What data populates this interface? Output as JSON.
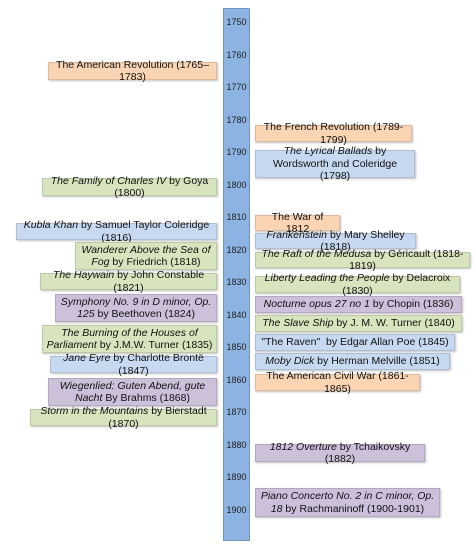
{
  "years": [
    "1750",
    "1760",
    "1770",
    "1780",
    "1790",
    "1800",
    "1810",
    "1820",
    "1830",
    "1840",
    "1850",
    "1860",
    "1870",
    "1880",
    "1890",
    "1900"
  ],
  "events": [
    {
      "color": "#fbd4b4",
      "parts": [
        {
          "text": "The American Revolution (1765–1783)",
          "italic": false
        }
      ]
    },
    {
      "color": "#d7e4bd",
      "parts": [
        {
          "text": "The Family of Charles IV",
          "italic": true
        },
        {
          "text": " by Goya (1800)",
          "italic": false
        }
      ]
    },
    {
      "color": "#c6d9f1",
      "parts": [
        {
          "text": "Kubla Khan",
          "italic": true
        },
        {
          "text": " by Samuel Taylor Coleridge (1816)",
          "italic": false
        }
      ]
    },
    {
      "color": "#d7e4bd",
      "parts": [
        {
          "text": "Wanderer Above the Sea of Fog",
          "italic": true
        },
        {
          "text": " by Friedrich (1818)",
          "italic": false
        }
      ]
    },
    {
      "color": "#d7e4bd",
      "parts": [
        {
          "text": "The Haywain",
          "italic": true
        },
        {
          "text": " by John Constable (1821)",
          "italic": false
        }
      ]
    },
    {
      "color": "#ccc0da",
      "parts": [
        {
          "text": "Symphony No. 9 in D minor, Op. 125",
          "italic": true
        },
        {
          "text": " by Beethoven (1824)",
          "italic": false
        }
      ]
    },
    {
      "color": "#d7e4bd",
      "parts": [
        {
          "text": "The Burning of the Houses of Parliament",
          "italic": true
        },
        {
          "text": " by J.M.W. Turner (1835)",
          "italic": false
        }
      ]
    },
    {
      "color": "#c6d9f1",
      "parts": [
        {
          "text": "Jane Eyre",
          "italic": true
        },
        {
          "text": " by Charlotte Brontë (1847)",
          "italic": false
        }
      ]
    },
    {
      "color": "#ccc0da",
      "parts": [
        {
          "text": "Wiegenlied: Guten Abend, gute Nacht",
          "italic": true
        },
        {
          "text": " By Brahms (1868)",
          "italic": false
        }
      ]
    },
    {
      "color": "#d7e4bd",
      "parts": [
        {
          "text": "Storm in the Mountains",
          "italic": true
        },
        {
          "text": " by Bierstadt (1870)",
          "italic": false
        }
      ]
    },
    {
      "color": "#fbd4b4",
      "parts": [
        {
          "text": "The French Revolution (1789-1799)",
          "italic": false
        }
      ]
    },
    {
      "color": "#c6d9f1",
      "parts": [
        {
          "text": "The Lyrical Ballads",
          "italic": true
        },
        {
          "text": " by Wordsworth and Coleridge (1798)",
          "italic": false
        }
      ]
    },
    {
      "color": "#fbd4b4",
      "parts": [
        {
          "text": "The War of 1812",
          "italic": false
        }
      ]
    },
    {
      "color": "#c6d9f1",
      "parts": [
        {
          "text": "Frankenstein",
          "italic": true
        },
        {
          "text": " by Mary Shelley (1818)",
          "italic": false
        }
      ]
    },
    {
      "color": "#d7e4bd",
      "parts": [
        {
          "text": "The Raft of the Medusa",
          "italic": true
        },
        {
          "text": " by Géricault (1818-1819)",
          "italic": false
        }
      ]
    },
    {
      "color": "#d7e4bd",
      "parts": [
        {
          "text": "Liberty Leading the People",
          "italic": true
        },
        {
          "text": " by Delacroix (1830)",
          "italic": false
        }
      ]
    },
    {
      "color": "#ccc0da",
      "parts": [
        {
          "text": "Nocturne opus 27 no 1",
          "italic": true
        },
        {
          "text": " by Chopin (1836)",
          "italic": false
        }
      ]
    },
    {
      "color": "#d7e4bd",
      "parts": [
        {
          "text": "The Slave Ship",
          "italic": true
        },
        {
          "text": " by J. M. W. Turner (1840)",
          "italic": false
        }
      ]
    },
    {
      "color": "#c6d9f1",
      "parts": [
        {
          "text": "\"The Raven\"  by Edgar Allan Poe (1845)",
          "italic": false
        }
      ]
    },
    {
      "color": "#c6d9f1",
      "parts": [
        {
          "text": "Moby Dick",
          "italic": true
        },
        {
          "text": " by Herman Melville (1851)",
          "italic": false
        }
      ]
    },
    {
      "color": "#fbd4b4",
      "parts": [
        {
          "text": "The American Civil War (1861-1865)",
          "italic": false
        }
      ]
    },
    {
      "color": "#ccc0da",
      "parts": [
        {
          "text": "1812 Overture",
          "italic": true
        },
        {
          "text": " by Tchaikovsky (1882)",
          "italic": false
        }
      ]
    },
    {
      "color": "#ccc0da",
      "parts": [
        {
          "text": "Piano Concerto No. 2 in C minor, Op. 18",
          "italic": true
        },
        {
          "text": " by Rachmaninoff (1900-1901)",
          "italic": false
        }
      ]
    }
  ]
}
